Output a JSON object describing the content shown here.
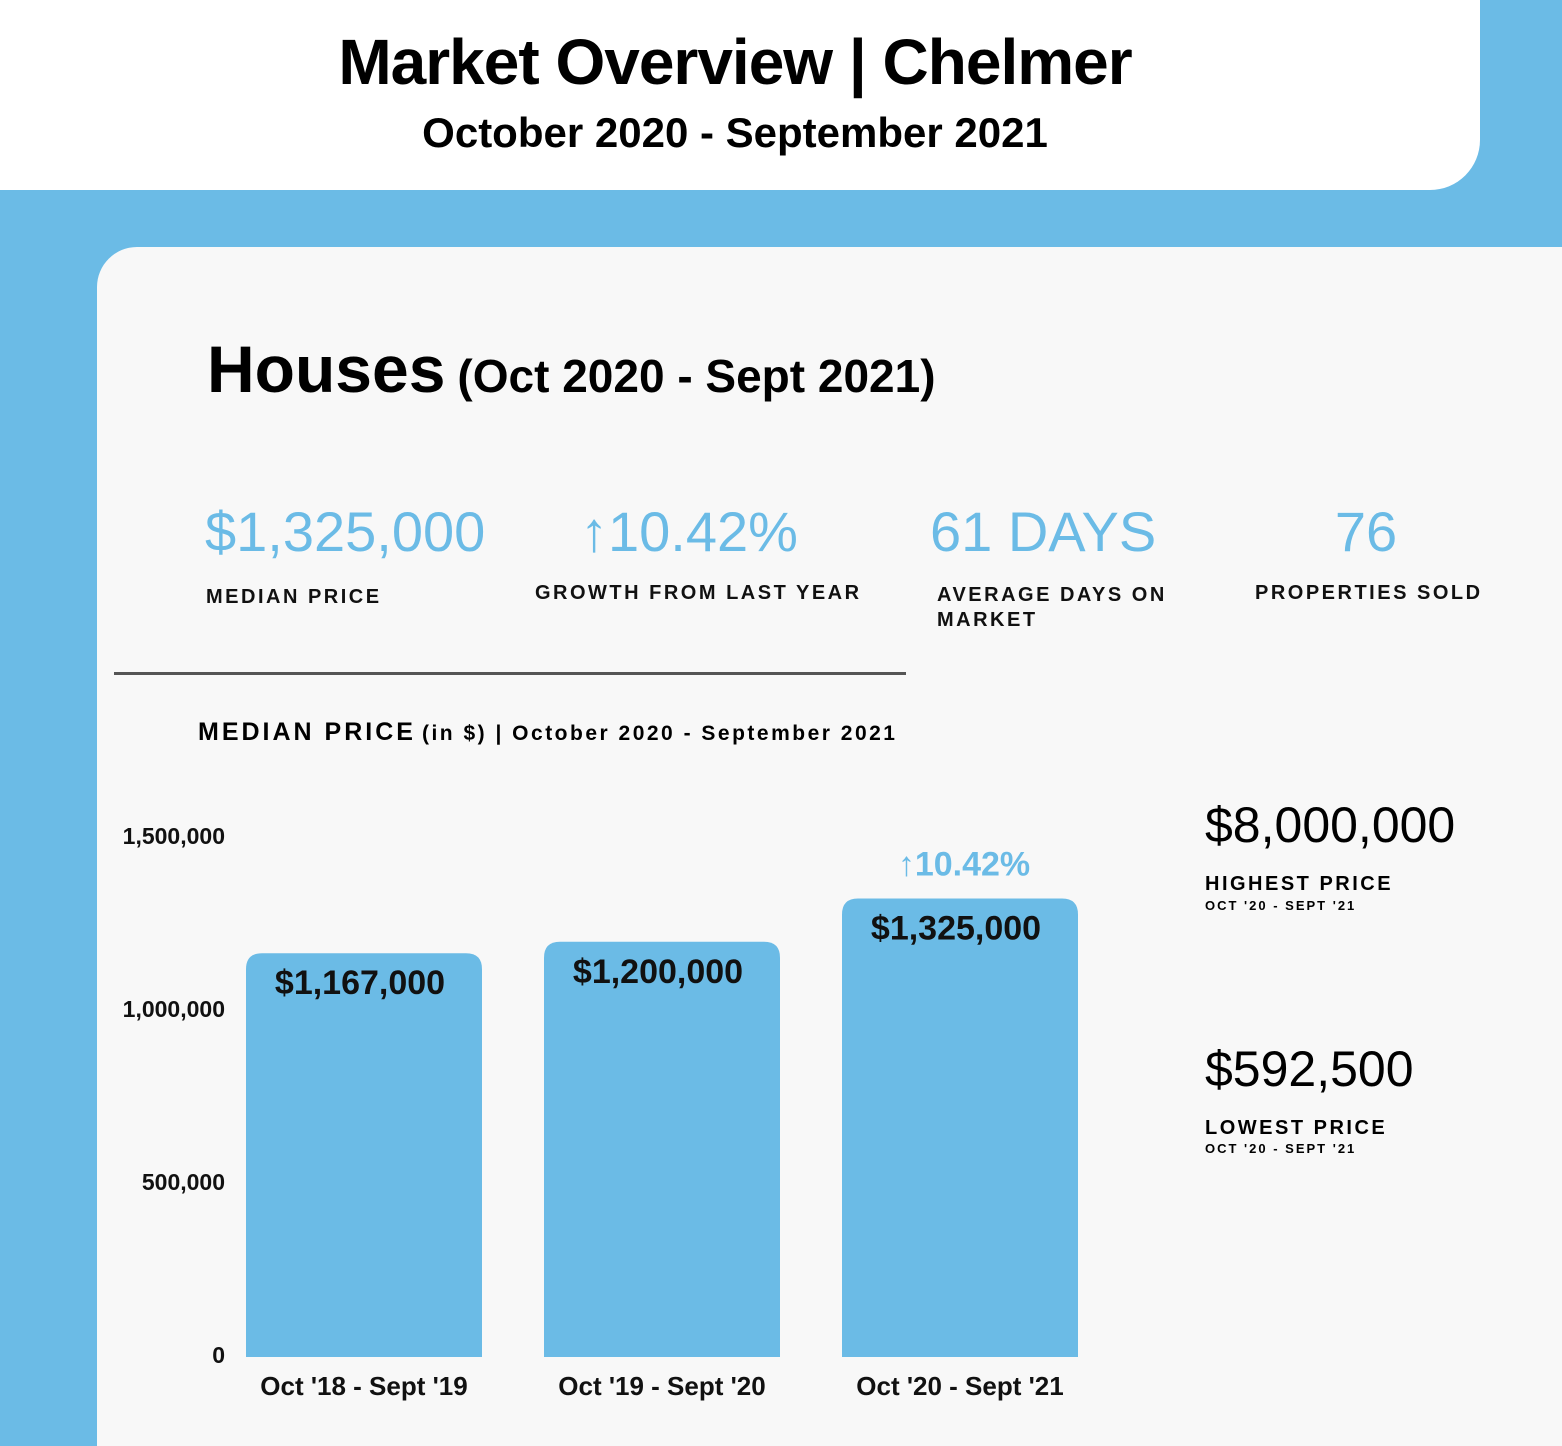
{
  "header": {
    "title": "Market Overview | Chelmer",
    "subtitle": "October 2020 - September 2021"
  },
  "section": {
    "title": "Houses",
    "subtitle": "(Oct 2020 - Sept 2021)"
  },
  "stats": [
    {
      "value": "$1,325,000",
      "label": "MEDIAN PRICE"
    },
    {
      "value": "↑10.42%",
      "label": "GROWTH FROM LAST YEAR"
    },
    {
      "value": "61 DAYS",
      "label": "AVERAGE DAYS ON MARKET"
    },
    {
      "value": "76",
      "label": "PROPERTIES SOLD"
    }
  ],
  "extremes": [
    {
      "value": "$8,000,000",
      "label": "HIGHEST PRICE",
      "period": "OCT '20 - SEPT '21"
    },
    {
      "value": "$592,500",
      "label": "LOWEST PRICE",
      "period": "OCT '20 - SEPT '21"
    }
  ],
  "chart_data": {
    "type": "bar",
    "title": "MEDIAN PRICE",
    "subtitle": "(in $) | October 2020 - September 2021",
    "categories": [
      "Oct '18 - Sept '19",
      "Oct '19 - Sept '20",
      "Oct '20 - Sept '21"
    ],
    "values": [
      1167000,
      1200000,
      1325000
    ],
    "value_labels": [
      "$1,167,000",
      "$1,200,000",
      "$1,325,000"
    ],
    "annotation": "↑10.42%",
    "color": "#6bbbe6",
    "ylim": [
      0,
      1500000
    ],
    "yticks": [
      0,
      {
        "value": 500000,
        "label": "500,000"
      },
      {
        "value": 1000000,
        "label": "1,000,000"
      },
      {
        "value": 1500000,
        "label": "1,500,000"
      }
    ]
  }
}
